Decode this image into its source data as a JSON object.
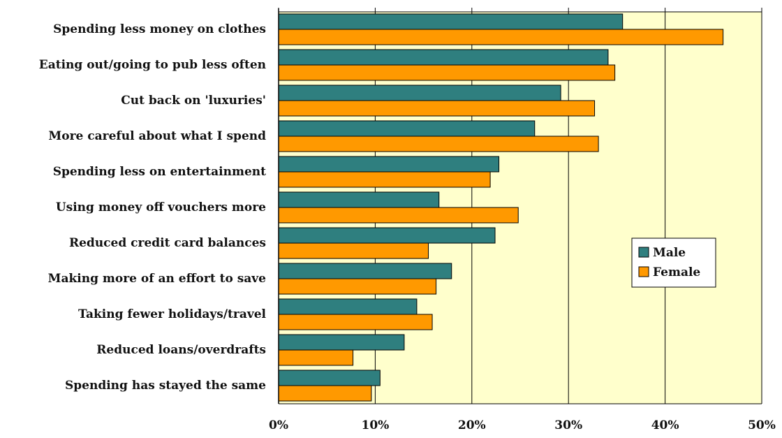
{
  "chart_data": {
    "type": "bar",
    "orientation": "horizontal",
    "categories": [
      "Spending less money on clothes",
      "Eating out/going to pub less often",
      "Cut back on 'luxuries'",
      "More careful about what I spend",
      "Spending less on entertainment",
      "Using money off vouchers more",
      "Reduced credit card balances",
      "Making more of an effort to save",
      "Taking fewer holidays/travel",
      "Reduced loans/overdrafts",
      "Spending has stayed the same"
    ],
    "series": [
      {
        "name": "Male",
        "color": "#2f7f7f",
        "values": [
          35.6,
          34.1,
          29.2,
          26.5,
          22.8,
          16.6,
          22.4,
          17.9,
          14.3,
          13.0,
          10.5
        ]
      },
      {
        "name": "Female",
        "color": "#ff9900",
        "values": [
          46.0,
          34.8,
          32.7,
          33.1,
          21.9,
          24.8,
          15.5,
          16.3,
          15.9,
          7.7,
          9.6
        ]
      }
    ],
    "xlim": [
      0,
      50
    ],
    "ticks": [
      "0%",
      "10%",
      "20%",
      "30%",
      "40%",
      "50%"
    ],
    "tick_values": [
      0,
      10,
      20,
      30,
      40,
      50
    ],
    "plot_background": "#ffffcc",
    "grid": true,
    "legend_position": "right"
  }
}
